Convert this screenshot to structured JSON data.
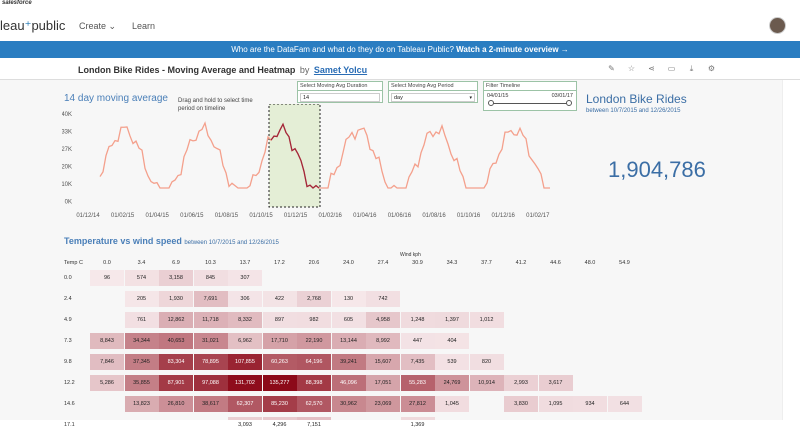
{
  "topbar": {
    "brand": "salesforce"
  },
  "nav": {
    "logo_left": "leau",
    "logo_right": "public",
    "create": "Create",
    "learn": "Learn"
  },
  "banner": {
    "text": "Who are the DataFam and what do they do on Tableau Public?",
    "cta": "Watch a 2-minute overview →"
  },
  "viz": {
    "title": "London Bike Rides - Moving Average and Heatmap",
    "by": "by",
    "author": "Samet Yolcu"
  },
  "toolbar": {
    "icons": [
      "edit-icon",
      "star-icon",
      "share-icon",
      "comment-icon",
      "download-icon",
      "settings-icon"
    ]
  },
  "moving_average": {
    "title": "14 day moving average",
    "hint": "Drag and hold to select time period on timeline",
    "duration": {
      "label": "Select Moving Avg Duration",
      "value": "14"
    },
    "period": {
      "label": "Select Moving Avg Period",
      "value": "day"
    },
    "timeline": {
      "label": "Filter Timeline",
      "start": "04/01/15",
      "end": "03/01/17"
    }
  },
  "summary": {
    "title": "London Bike Rides",
    "subtitle": "between 10/7/2015 and 12/26/2015",
    "total": "1,904,786"
  },
  "chart_data": {
    "type": "line",
    "title": "14 day moving average",
    "y_ticks": [
      "40K",
      "33K",
      "27K",
      "20K",
      "10K",
      "0K"
    ],
    "x_ticks": [
      "01/12/14",
      "01/02/15",
      "01/04/15",
      "01/06/15",
      "01/08/15",
      "01/10/15",
      "01/12/15",
      "01/02/16",
      "01/04/16",
      "01/06/16",
      "01/08/16",
      "01/10/16",
      "01/12/16",
      "01/02/17"
    ],
    "highlight_range": [
      "10/7/2015",
      "12/26/2015"
    ],
    "colors": {
      "line": "#f4a08c",
      "highlight": "#a1273a",
      "band": "#e4eed6"
    }
  },
  "heatmap": {
    "title": "Temperature vs wind speed",
    "subtitle": "between 10/7/2015 and 12/26/2015",
    "x_label": "Wind kph",
    "y_label": "Temp C",
    "x_headers": [
      "0.0",
      "3.4",
      "6.9",
      "10.3",
      "13.7",
      "17.2",
      "20.6",
      "24.0",
      "27.4",
      "30.9",
      "34.3",
      "37.7",
      "41.2",
      "44.6",
      "48.0",
      "54.9"
    ],
    "rows": [
      {
        "temp": "0.0",
        "cells": [
          "96",
          "574",
          "3,158",
          "845",
          "307",
          "",
          "",
          "",
          "",
          "",
          "",
          "",
          "",
          "",
          "",
          ""
        ]
      },
      {
        "temp": "2.4",
        "cells": [
          "",
          "205",
          "1,930",
          "7,691",
          "306",
          "422",
          "2,768",
          "130",
          "742",
          "",
          "",
          "",
          "",
          "",
          "",
          ""
        ]
      },
      {
        "temp": "4.9",
        "cells": [
          "",
          "761",
          "12,862",
          "11,718",
          "8,332",
          "897",
          "982",
          "605",
          "4,958",
          "1,248",
          "1,397",
          "1,012",
          "",
          "",
          "",
          ""
        ]
      },
      {
        "temp": "7.3",
        "cells": [
          "8,843",
          "34,344",
          "40,653",
          "31,021",
          "6,962",
          "17,710",
          "22,190",
          "13,144",
          "8,992",
          "447",
          "404",
          "",
          "",
          "",
          "",
          ""
        ]
      },
      {
        "temp": "9.8",
        "cells": [
          "7,846",
          "37,345",
          "83,304",
          "78,895",
          "107,855",
          "60,263",
          "64,196",
          "39,241",
          "15,607",
          "7,435",
          "539",
          "820",
          "",
          "",
          "",
          ""
        ]
      },
      {
        "temp": "12.2",
        "cells": [
          "5,286",
          "35,855",
          "87,901",
          "97,088",
          "131,702",
          "135,277",
          "88,398",
          "46,096",
          "17,051",
          "55,283",
          "24,769",
          "10,914",
          "2,993",
          "3,617",
          "",
          ""
        ]
      },
      {
        "temp": "14.6",
        "cells": [
          "",
          "13,823",
          "26,810",
          "38,617",
          "62,307",
          "85,230",
          "62,570",
          "30,962",
          "23,069",
          "27,812",
          "1,045",
          "",
          "3,830",
          "1,095",
          "934",
          "644"
        ]
      },
      {
        "temp": "17.1",
        "cells": [
          "",
          "",
          "",
          "",
          "3,093",
          "4,296",
          "7,151",
          "",
          "",
          "1,369",
          "",
          "",
          "",
          "",
          "",
          ""
        ]
      }
    ]
  }
}
